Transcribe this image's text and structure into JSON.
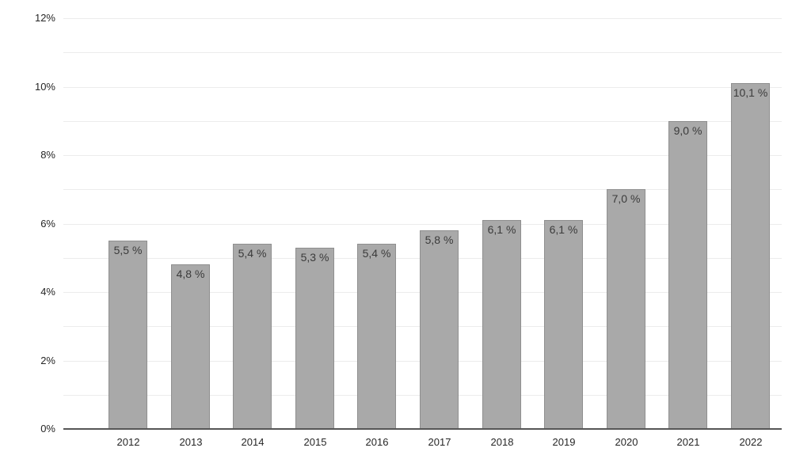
{
  "chart_data": {
    "type": "bar",
    "title": "",
    "xlabel": "",
    "ylabel": "",
    "categories": [
      "2012",
      "2013",
      "2014",
      "2015",
      "2016",
      "2017",
      "2018",
      "2019",
      "2020",
      "2021",
      "2022"
    ],
    "values": [
      5.5,
      4.8,
      5.4,
      5.3,
      5.4,
      5.8,
      6.1,
      6.1,
      7.0,
      9.0,
      10.1
    ],
    "bar_labels": [
      "5,5 %",
      "4,8 %",
      "5,4 %",
      "5,3 %",
      "5,4 %",
      "5,8 %",
      "6,1 %",
      "6,1 %",
      "7,0 %",
      "9,0 %",
      "10,1 %"
    ],
    "ylim": [
      0,
      12
    ],
    "y_ticks": [
      {
        "value": 0,
        "label": "0%"
      },
      {
        "value": 2,
        "label": "2%"
      },
      {
        "value": 4,
        "label": "4%"
      },
      {
        "value": 6,
        "label": "6%"
      },
      {
        "value": 8,
        "label": "8%"
      },
      {
        "value": 10,
        "label": "10%"
      },
      {
        "value": 12,
        "label": "12%"
      }
    ],
    "gridlines": {
      "on": true,
      "interval": 1
    },
    "legend": {
      "visible": false
    },
    "decimal_separator": ",",
    "colors": {
      "bar_fill": "#a9a9a9",
      "bar_border": "#8f8f8f",
      "gridline": "#ececec",
      "axis_line": "#565656",
      "tick_text": "#262626",
      "bar_label_text": "#3b3b3b",
      "background": "#ffffff"
    }
  }
}
